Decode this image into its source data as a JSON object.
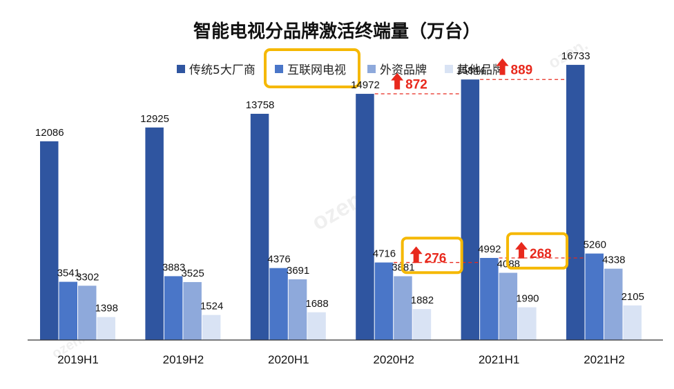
{
  "chart_data": {
    "type": "bar",
    "title": "智能电视分品牌激活终端量（万台）",
    "categories": [
      "2019H1",
      "2019H2",
      "2020H1",
      "2020H2",
      "2021H1",
      "2021H2"
    ],
    "series": [
      {
        "name": "传统5大厂商",
        "color": "#2f55a0",
        "values": [
          12086,
          12925,
          13758,
          14972,
          15844,
          16733
        ]
      },
      {
        "name": "互联网电视",
        "color": "#4a76c8",
        "values": [
          3541,
          3883,
          4376,
          4716,
          4992,
          5260
        ]
      },
      {
        "name": "外资品牌",
        "color": "#8ea9db",
        "values": [
          3302,
          3525,
          3691,
          3881,
          4088,
          4338
        ]
      },
      {
        "name": "其他品牌",
        "color": "#d9e3f4",
        "values": [
          1398,
          1524,
          1688,
          1882,
          1990,
          2105
        ]
      }
    ],
    "ylim": [
      0,
      19000
    ],
    "grid": false,
    "legend_position": "top",
    "highlight_color": "#f5b800",
    "increase_color": "#e8291d",
    "annotations": [
      {
        "text": "872",
        "series": 0,
        "from": 3,
        "to": 4
      },
      {
        "text": "889",
        "series": 0,
        "from": 4,
        "to": 5
      },
      {
        "text": "276",
        "series": 1,
        "from": 3,
        "to": 4,
        "boxed": true
      },
      {
        "text": "268",
        "series": 1,
        "from": 4,
        "to": 5,
        "boxed": true
      }
    ]
  },
  "watermarks": [
    "ozen.",
    "ozen.",
    "ozen."
  ]
}
